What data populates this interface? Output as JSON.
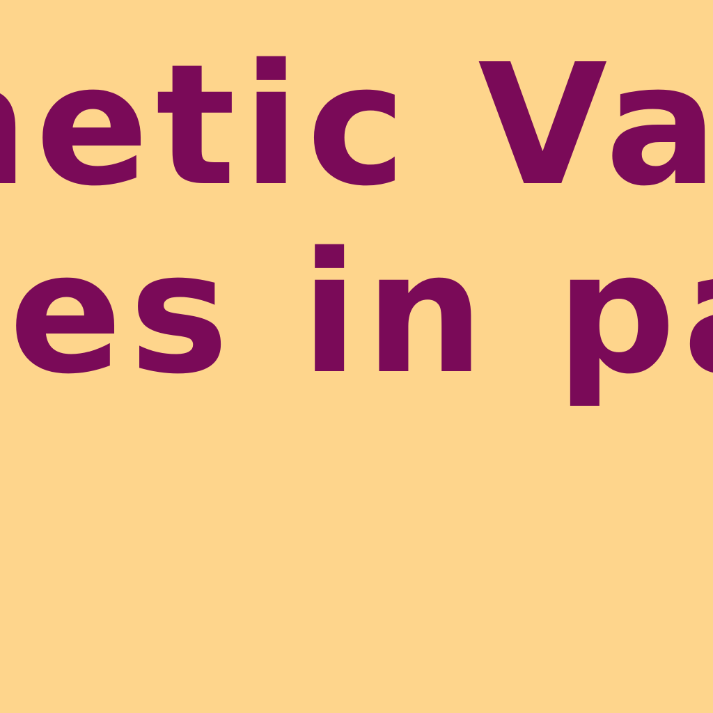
{
  "text": {
    "line_1": "netic Vari",
    "line_2": "ses in par"
  },
  "colors": {
    "background": "#FED58C",
    "text": "#7A0A58"
  }
}
